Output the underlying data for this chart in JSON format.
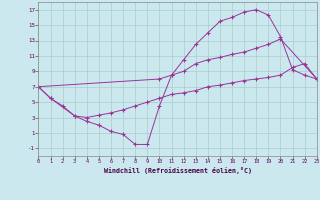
{
  "xlabel": "Windchill (Refroidissement éolien,°C)",
  "bg_color": "#cce8ef",
  "grid_color": "#aacccc",
  "line_color": "#993399",
  "xlim": [
    0,
    23
  ],
  "ylim": [
    -2,
    18
  ],
  "xticks": [
    0,
    1,
    2,
    3,
    4,
    5,
    6,
    7,
    8,
    9,
    10,
    11,
    12,
    13,
    14,
    15,
    16,
    17,
    18,
    19,
    20,
    21,
    22,
    23
  ],
  "yticks": [
    -1,
    1,
    3,
    5,
    7,
    9,
    11,
    13,
    15,
    17
  ],
  "upper_x": [
    0,
    1,
    3,
    4,
    5,
    6,
    7,
    8,
    9,
    10,
    11,
    12,
    13,
    14,
    15,
    16,
    17,
    18,
    19,
    20,
    21,
    22,
    23
  ],
  "upper_y": [
    7,
    5.5,
    3.2,
    2.5,
    2.0,
    1.2,
    0.8,
    -0.5,
    -0.5,
    4.5,
    8.5,
    10.5,
    12.5,
    14.0,
    15.5,
    16.0,
    16.7,
    17.0,
    16.3,
    13.5,
    9.2,
    8.5,
    8.0
  ],
  "mid_x": [
    0,
    10,
    11,
    12,
    13,
    14,
    15,
    16,
    17,
    18,
    19,
    20,
    23
  ],
  "mid_y": [
    7,
    8.0,
    8.5,
    9.0,
    10.0,
    10.5,
    10.8,
    11.2,
    11.5,
    12.0,
    12.5,
    13.2,
    8.0
  ],
  "lower_x": [
    0,
    1,
    2,
    3,
    4,
    5,
    6,
    7,
    8,
    9,
    10,
    11,
    12,
    13,
    14,
    15,
    16,
    17,
    18,
    19,
    20,
    21,
    22,
    23
  ],
  "lower_y": [
    7,
    5.5,
    4.5,
    3.2,
    3.0,
    3.3,
    3.6,
    4.0,
    4.5,
    5.0,
    5.5,
    6.0,
    6.2,
    6.5,
    7.0,
    7.2,
    7.5,
    7.8,
    8.0,
    8.2,
    8.5,
    9.5,
    10.0,
    8.0
  ]
}
